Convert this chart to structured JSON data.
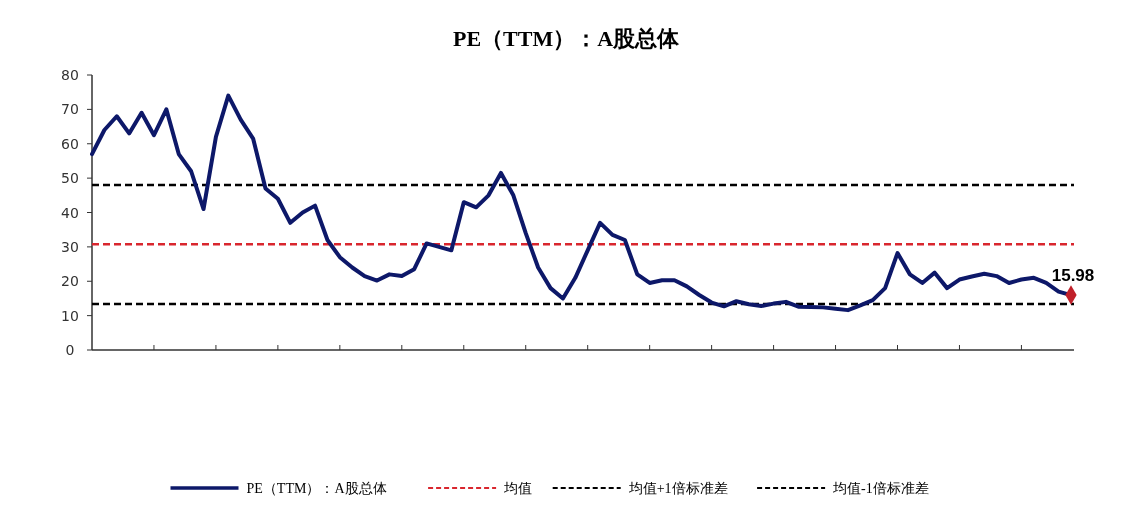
{
  "chart_data": {
    "type": "line",
    "title": "PE（TTM）：A股总体",
    "categories": [
      null,
      null,
      null,
      null,
      null,
      null,
      null,
      null,
      null,
      null,
      null,
      null,
      null,
      null,
      null,
      null,
      null,
      null,
      null,
      null,
      null,
      null,
      null,
      null,
      null,
      null,
      null,
      null,
      null,
      null,
      null,
      null,
      null,
      null,
      null,
      null,
      null,
      null,
      null,
      null,
      null,
      null,
      null,
      null,
      null,
      null,
      null,
      null,
      null,
      null,
      null,
      null,
      null,
      null,
      null,
      null,
      null,
      null,
      null,
      null,
      null,
      null,
      null,
      null,
      null,
      null,
      null,
      null,
      null,
      null,
      null,
      null,
      null,
      null,
      null,
      null,
      null,
      null,
      null,
      null
    ],
    "ylim": [
      0,
      80
    ],
    "yticks": [
      0,
      10,
      20,
      30,
      40,
      50,
      60,
      70,
      80
    ],
    "legend": "bottom",
    "series": [
      {
        "name": "PE（TTM）：A股总体",
        "color": "#0d1869",
        "line_style": "solid",
        "values": [
          57,
          64,
          68,
          63,
          69,
          62.5,
          70,
          57,
          52,
          41,
          62,
          74,
          67,
          61.5,
          47,
          44,
          37,
          40,
          42,
          32,
          27,
          24,
          21.5,
          20.2,
          22,
          21.5,
          23.5,
          31,
          30,
          29,
          43,
          41.5,
          45,
          51.5,
          45,
          34,
          24,
          18,
          15,
          21,
          29,
          37,
          33.5,
          32,
          22,
          19.5,
          20.3,
          20.3,
          18.5,
          16,
          13.8,
          12.7,
          14.2,
          13.3,
          12.8,
          13.5,
          14,
          12.6,
          12.5,
          12.4,
          12,
          11.6,
          13,
          14.5,
          18,
          28.2,
          22,
          19.5,
          22.5,
          18,
          20.5,
          21.4,
          22.2,
          21.5,
          19.5,
          20.5,
          21,
          19.5,
          17,
          15.98
        ],
        "value_labels": [
          null,
          null,
          null,
          null,
          null,
          null,
          null,
          null,
          null,
          null,
          null,
          null,
          null,
          null,
          null,
          null,
          null,
          null,
          null,
          null,
          null,
          null,
          null,
          null,
          null,
          null,
          null,
          null,
          null,
          null,
          null,
          null,
          null,
          null,
          null,
          null,
          null,
          null,
          null,
          null,
          null,
          null,
          null,
          null,
          null,
          null,
          null,
          null,
          null,
          null,
          null,
          null,
          null,
          null,
          null,
          null,
          null,
          null,
          null,
          null,
          null,
          null,
          null,
          null,
          null,
          null,
          null,
          null,
          null,
          null,
          null,
          null,
          null,
          null,
          null,
          null,
          null,
          null,
          null,
          "15.98"
        ]
      }
    ],
    "ref_lines": [
      {
        "axis": "y",
        "value": 30.8,
        "label": "均值",
        "color": "#d9262e",
        "line_style": "dashed"
      },
      {
        "axis": "y",
        "value": 48,
        "label": "均值+1倍标准差",
        "color": "#000000",
        "line_style": "dashed"
      },
      {
        "axis": "y",
        "value": 13.4,
        "label": "均值-1倍标准差",
        "color": "#000000",
        "line_style": "dashed"
      }
    ]
  }
}
